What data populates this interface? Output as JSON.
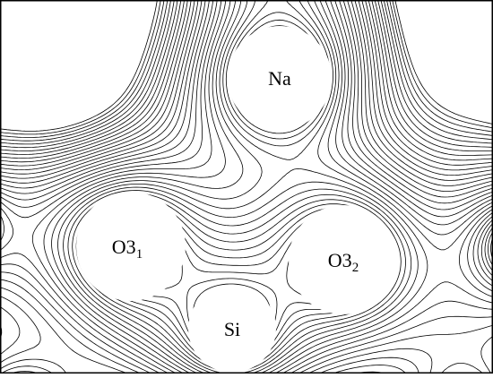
{
  "figure": {
    "colors": {
      "background": "#ffffff",
      "contour": "#000000",
      "frame": "#000000"
    },
    "atoms": [
      {
        "id": "na",
        "label": "Na",
        "subscript": ""
      },
      {
        "id": "o3-1",
        "label": "O3",
        "subscript": "1"
      },
      {
        "id": "o3-2",
        "label": "O3",
        "subscript": "2"
      },
      {
        "id": "si",
        "label": "Si",
        "subscript": ""
      }
    ]
  }
}
